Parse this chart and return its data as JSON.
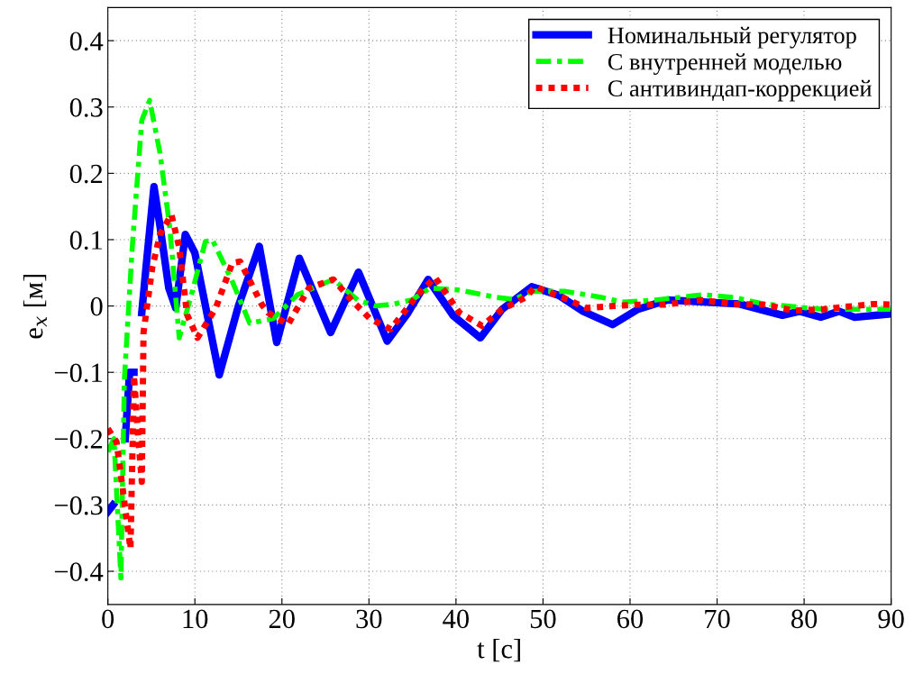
{
  "chart_data": {
    "type": "line",
    "xlabel": "t [с]",
    "ylabel": "e$_{x}$ [м]",
    "xlim": [
      0,
      90
    ],
    "ylim": [
      -0.45,
      0.45
    ],
    "xticks": [
      0,
      10,
      20,
      30,
      40,
      50,
      60,
      70,
      80,
      90
    ],
    "yticks": [
      {
        "value": -0.4,
        "label": "−0.4"
      },
      {
        "value": -0.3,
        "label": "−0.3"
      },
      {
        "value": -0.2,
        "label": "−0.2"
      },
      {
        "value": -0.1,
        "label": "−0.1"
      },
      0,
      0.1,
      0.2,
      0.3,
      0.4
    ],
    "grid": true,
    "legend": "top right",
    "series": [
      {
        "name": "Номинальный регулятор",
        "color": "#0000ff",
        "line_style": "solid",
        "x": [
          0,
          0.6,
          1.2,
          1.6,
          2.0,
          2.5,
          3.0,
          3.3,
          3.6,
          3.9,
          4.4,
          5.3,
          6.0,
          7.0,
          7.8,
          8.9,
          10.0,
          12.8,
          15.0,
          17.4,
          19.4,
          22.0,
          25.6,
          28.8,
          32.1,
          34.5,
          36.8,
          39.7,
          42.8,
          45.3,
          48.7,
          51.8,
          54.6,
          58.0,
          60.9,
          64.3,
          68.4,
          72.6,
          77.5,
          79.5,
          81.9,
          84.0,
          85.8,
          89.9
        ],
        "values": [
          -0.31,
          -0.3,
          null,
          null,
          -0.2,
          -0.1,
          -0.1,
          null,
          null,
          -0.01,
          0.06,
          0.18,
          0.12,
          0.027,
          -0.003,
          0.108,
          0.08,
          -0.104,
          0.0,
          0.09,
          -0.055,
          0.072,
          -0.04,
          0.051,
          -0.053,
          -0.01,
          0.04,
          -0.015,
          -0.048,
          -0.005,
          0.029,
          0.016,
          -0.008,
          -0.028,
          -0.005,
          0.009,
          0.006,
          0.003,
          -0.014,
          -0.008,
          -0.017,
          -0.008,
          -0.017,
          -0.012
        ]
      },
      {
        "name": "С внутренней моделью",
        "color": "#00ff00",
        "line_style": "dashdot",
        "x": [
          0,
          0.7,
          1.5,
          1.9,
          2.8,
          3.9,
          4.8,
          6.0,
          7.1,
          8.2,
          9.7,
          11.2,
          12.0,
          14.3,
          16.3,
          19.0,
          21.8,
          25.9,
          28.7,
          30.8,
          32.9,
          34.9,
          37.0,
          40.4,
          44.6,
          46.7,
          48.7,
          52.6,
          56.7,
          59.1,
          62.9,
          68.4,
          71.9,
          75.4,
          78.8,
          82.2,
          85.8,
          89.9
        ],
        "values": [
          -0.22,
          -0.2,
          -0.41,
          -0.11,
          0.088,
          0.28,
          0.31,
          0.23,
          0.12,
          -0.048,
          0.022,
          0.097,
          0.1,
          0.037,
          -0.026,
          -0.019,
          0.017,
          0.04,
          0.009,
          0.0,
          0.003,
          0.009,
          0.027,
          0.024,
          0.013,
          0.01,
          0.022,
          0.022,
          0.013,
          0.006,
          0.009,
          0.017,
          0.013,
          0.003,
          -0.001,
          -0.005,
          -0.005,
          -0.005
        ]
      },
      {
        "name": "С антивиндап-коррекцией",
        "color": "#ff0000",
        "line_style": "dotted",
        "x": [
          0,
          1.0,
          2.6,
          3.0,
          3.5,
          3.9,
          4.1,
          5.1,
          6.0,
          7.3,
          8.2,
          9.1,
          10.3,
          12.4,
          14.3,
          15.2,
          17.7,
          18.4,
          20.7,
          23.1,
          25.9,
          28.0,
          30.1,
          32.5,
          35.6,
          37.6,
          40.4,
          43.0,
          45.3,
          48.0,
          49.1,
          52.2,
          55.0,
          58.1,
          60.9,
          64.0,
          68.1,
          71.9,
          75.4,
          78.8,
          82.2,
          85.0,
          88.1,
          89.9
        ],
        "values": [
          -0.185,
          -0.205,
          -0.366,
          -0.105,
          -0.2,
          -0.265,
          -0.04,
          0.058,
          0.108,
          0.138,
          0.088,
          -0.013,
          -0.048,
          -0.003,
          0.065,
          0.067,
          0.002,
          -0.01,
          -0.028,
          0.027,
          0.04,
          0.009,
          -0.019,
          -0.035,
          0.017,
          0.043,
          -0.01,
          -0.03,
          -0.005,
          0.013,
          0.029,
          0.013,
          -0.003,
          0.0,
          0.002,
          0.002,
          0.009,
          0.003,
          0.002,
          -0.007,
          -0.005,
          -0.001,
          0.003,
          0.002
        ]
      }
    ]
  }
}
